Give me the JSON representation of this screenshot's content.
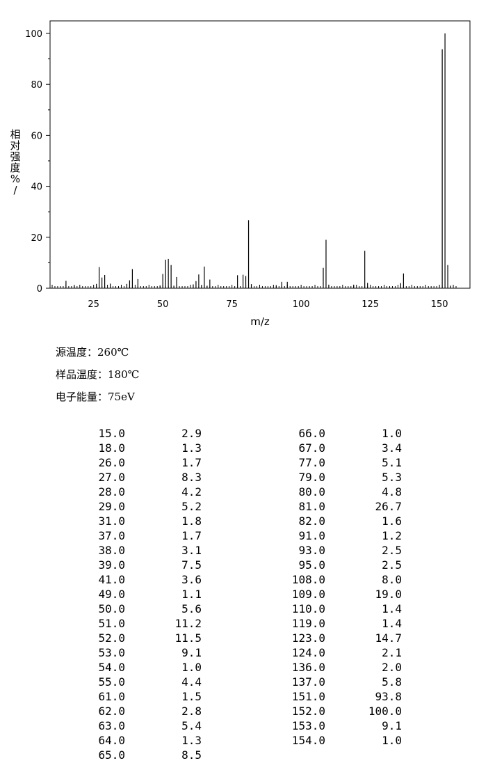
{
  "chart_data": {
    "type": "bar",
    "xlabel": "m/z",
    "ylabel": "相对强度%/",
    "xlim": [
      10,
      156
    ],
    "ylim": [
      0,
      100
    ],
    "xticks": [
      25,
      50,
      75,
      100,
      125,
      150
    ],
    "yticks": [
      0,
      20,
      40,
      60,
      80,
      100
    ],
    "grid": false,
    "legend": "none",
    "peaks": [
      {
        "mz": 15.0,
        "intensity": 2.9
      },
      {
        "mz": 18.0,
        "intensity": 1.3
      },
      {
        "mz": 26.0,
        "intensity": 1.7
      },
      {
        "mz": 27.0,
        "intensity": 8.3
      },
      {
        "mz": 28.0,
        "intensity": 4.2
      },
      {
        "mz": 29.0,
        "intensity": 5.2
      },
      {
        "mz": 31.0,
        "intensity": 1.8
      },
      {
        "mz": 37.0,
        "intensity": 1.7
      },
      {
        "mz": 38.0,
        "intensity": 3.1
      },
      {
        "mz": 39.0,
        "intensity": 7.5
      },
      {
        "mz": 41.0,
        "intensity": 3.6
      },
      {
        "mz": 49.0,
        "intensity": 1.1
      },
      {
        "mz": 50.0,
        "intensity": 5.6
      },
      {
        "mz": 51.0,
        "intensity": 11.2
      },
      {
        "mz": 52.0,
        "intensity": 11.5
      },
      {
        "mz": 53.0,
        "intensity": 9.1
      },
      {
        "mz": 54.0,
        "intensity": 1.0
      },
      {
        "mz": 55.0,
        "intensity": 4.4
      },
      {
        "mz": 61.0,
        "intensity": 1.5
      },
      {
        "mz": 62.0,
        "intensity": 2.8
      },
      {
        "mz": 63.0,
        "intensity": 5.4
      },
      {
        "mz": 64.0,
        "intensity": 1.3
      },
      {
        "mz": 65.0,
        "intensity": 8.5
      },
      {
        "mz": 66.0,
        "intensity": 1.0
      },
      {
        "mz": 67.0,
        "intensity": 3.4
      },
      {
        "mz": 77.0,
        "intensity": 5.1
      },
      {
        "mz": 79.0,
        "intensity": 5.3
      },
      {
        "mz": 80.0,
        "intensity": 4.8
      },
      {
        "mz": 81.0,
        "intensity": 26.7
      },
      {
        "mz": 82.0,
        "intensity": 1.6
      },
      {
        "mz": 91.0,
        "intensity": 1.2
      },
      {
        "mz": 93.0,
        "intensity": 2.5
      },
      {
        "mz": 95.0,
        "intensity": 2.5
      },
      {
        "mz": 108.0,
        "intensity": 8.0
      },
      {
        "mz": 109.0,
        "intensity": 19.0
      },
      {
        "mz": 110.0,
        "intensity": 1.4
      },
      {
        "mz": 119.0,
        "intensity": 1.4
      },
      {
        "mz": 123.0,
        "intensity": 14.7
      },
      {
        "mz": 124.0,
        "intensity": 2.1
      },
      {
        "mz": 136.0,
        "intensity": 2.0
      },
      {
        "mz": 137.0,
        "intensity": 5.8
      },
      {
        "mz": 151.0,
        "intensity": 93.8
      },
      {
        "mz": 152.0,
        "intensity": 100.0
      },
      {
        "mz": 153.0,
        "intensity": 9.1
      },
      {
        "mz": 154.0,
        "intensity": 1.0
      }
    ]
  },
  "conditions": [
    {
      "label": "源温度：",
      "value": "260℃"
    },
    {
      "label": "样品温度：",
      "value": "180℃"
    },
    {
      "label": "电子能量：",
      "value": "75eV"
    }
  ],
  "peak_table": {
    "left": [
      [
        "15.0",
        "2.9"
      ],
      [
        "18.0",
        "1.3"
      ],
      [
        "26.0",
        "1.7"
      ],
      [
        "27.0",
        "8.3"
      ],
      [
        "28.0",
        "4.2"
      ],
      [
        "29.0",
        "5.2"
      ],
      [
        "31.0",
        "1.8"
      ],
      [
        "37.0",
        "1.7"
      ],
      [
        "38.0",
        "3.1"
      ],
      [
        "39.0",
        "7.5"
      ],
      [
        "41.0",
        "3.6"
      ],
      [
        "49.0",
        "1.1"
      ],
      [
        "50.0",
        "5.6"
      ],
      [
        "51.0",
        "11.2"
      ],
      [
        "52.0",
        "11.5"
      ],
      [
        "53.0",
        "9.1"
      ],
      [
        "54.0",
        "1.0"
      ],
      [
        "55.0",
        "4.4"
      ],
      [
        "61.0",
        "1.5"
      ],
      [
        "62.0",
        "2.8"
      ],
      [
        "63.0",
        "5.4"
      ],
      [
        "64.0",
        "1.3"
      ],
      [
        "65.0",
        "8.5"
      ]
    ],
    "right": [
      [
        "66.0",
        "1.0"
      ],
      [
        "67.0",
        "3.4"
      ],
      [
        "77.0",
        "5.1"
      ],
      [
        "79.0",
        "5.3"
      ],
      [
        "80.0",
        "4.8"
      ],
      [
        "81.0",
        "26.7"
      ],
      [
        "82.0",
        "1.6"
      ],
      [
        "91.0",
        "1.2"
      ],
      [
        "93.0",
        "2.5"
      ],
      [
        "95.0",
        "2.5"
      ],
      [
        "108.0",
        "8.0"
      ],
      [
        "109.0",
        "19.0"
      ],
      [
        "110.0",
        "1.4"
      ],
      [
        "119.0",
        "1.4"
      ],
      [
        "123.0",
        "14.7"
      ],
      [
        "124.0",
        "2.1"
      ],
      [
        "136.0",
        "2.0"
      ],
      [
        "137.0",
        "5.8"
      ],
      [
        "151.0",
        "93.8"
      ],
      [
        "152.0",
        "100.0"
      ],
      [
        "153.0",
        "9.1"
      ],
      [
        "154.0",
        "1.0"
      ]
    ]
  }
}
